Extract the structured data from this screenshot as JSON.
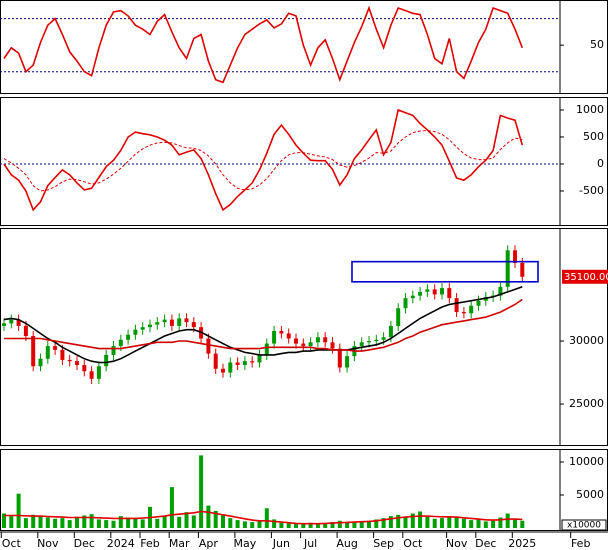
{
  "chart_data": [
    {
      "type": "line",
      "ylim": [
        14,
        84
      ],
      "yticks": [
        50
      ],
      "ref_lines": [
        30,
        70
      ],
      "series": [
        {
          "color": "#e00000",
          "values": [
            40,
            48,
            44,
            30,
            35,
            52,
            65,
            70,
            58,
            45,
            38,
            30,
            27,
            48,
            65,
            75,
            76,
            72,
            65,
            62,
            58,
            68,
            73,
            60,
            48,
            40,
            55,
            58,
            38,
            24,
            22,
            35,
            48,
            58,
            62,
            66,
            69,
            63,
            66,
            74,
            72,
            50,
            35,
            48,
            54,
            40,
            24,
            38,
            52,
            64,
            78,
            62,
            48,
            65,
            78,
            76,
            74,
            73,
            58,
            40,
            36,
            55,
            30,
            25,
            38,
            52,
            62,
            78,
            76,
            74,
            62,
            48,
            null,
            null,
            null,
            null,
            null,
            null,
            null,
            null
          ]
        }
      ]
    },
    {
      "type": "line",
      "ylim": [
        -1130,
        1240
      ],
      "yticks": [
        1000,
        500,
        0,
        -500
      ],
      "ref_lines": [
        0
      ],
      "series": [
        {
          "color": "#e00000",
          "values": [
            0,
            -200,
            -300,
            -500,
            -850,
            -700,
            -400,
            -250,
            -110,
            -200,
            -350,
            -480,
            -450,
            -250,
            -50,
            70,
            250,
            500,
            590,
            560,
            540,
            500,
            440,
            350,
            170,
            220,
            260,
            100,
            -200,
            -550,
            -850,
            -750,
            -600,
            -480,
            -350,
            -110,
            200,
            550,
            720,
            550,
            350,
            200,
            70,
            60,
            60,
            -100,
            -390,
            -200,
            100,
            260,
            450,
            630,
            170,
            400,
            1000,
            950,
            900,
            750,
            630,
            500,
            350,
            50,
            -260,
            -300,
            -200,
            -50,
            70,
            250,
            900,
            850,
            810,
            350,
            null,
            null,
            null,
            null,
            null,
            null,
            null,
            null
          ]
        },
        {
          "color": "#e00000",
          "dashed": true,
          "values": [
            100,
            20,
            -80,
            -200,
            -400,
            -500,
            -480,
            -420,
            -330,
            -280,
            -290,
            -330,
            -370,
            -350,
            -280,
            -190,
            -80,
            50,
            180,
            280,
            350,
            390,
            400,
            390,
            340,
            300,
            290,
            250,
            150,
            0,
            -200,
            -350,
            -450,
            -480,
            -460,
            -390,
            -270,
            -100,
            60,
            170,
            210,
            210,
            180,
            150,
            130,
            80,
            -20,
            -60,
            -30,
            30,
            110,
            210,
            200,
            240,
            390,
            500,
            580,
            610,
            620,
            600,
            550,
            450,
            310,
            190,
            110,
            80,
            80,
            110,
            270,
            390,
            480,
            450,
            null,
            null,
            null,
            null,
            null,
            null,
            null,
            null
          ]
        }
      ]
    },
    {
      "type": "candlestick",
      "ylim": [
        21750,
        38970
      ],
      "yticks": [
        30000,
        25000
      ],
      "up_color": "#009900",
      "down_color": "#e00000",
      "open": [
        31200,
        31400,
        31700,
        31200,
        30400,
        28000,
        28600,
        29600,
        29300,
        28500,
        28400,
        28100,
        27600,
        27000,
        28000,
        28900,
        29600,
        30100,
        30500,
        30900,
        31100,
        31300,
        31500,
        31700,
        31200,
        31800,
        31500,
        31100,
        30200,
        29000,
        27800,
        27500,
        28300,
        28100,
        28400,
        28300,
        28900,
        29800,
        30800,
        30600,
        30200,
        29800,
        29600,
        29900,
        30300,
        29900,
        29400,
        27900,
        28800,
        29600,
        29900,
        30000,
        30100,
        30300,
        31200,
        32600,
        33400,
        33600,
        33900,
        34100,
        33700,
        34200,
        33400,
        32300,
        32200,
        32800,
        33200,
        33500,
        33600,
        34300,
        37200,
        36200,
        null,
        null,
        null,
        null,
        null,
        null,
        null,
        null
      ],
      "high": [
        31800,
        32100,
        32100,
        31600,
        30800,
        29000,
        30000,
        30000,
        29700,
        28900,
        28800,
        28500,
        28000,
        28400,
        29300,
        30000,
        30500,
        30900,
        31300,
        31500,
        31700,
        31900,
        32100,
        32100,
        32200,
        32200,
        31900,
        31500,
        30600,
        29400,
        28200,
        28700,
        28700,
        28800,
        28800,
        29300,
        30200,
        31200,
        31200,
        31000,
        30600,
        30200,
        30300,
        30700,
        30700,
        30300,
        29800,
        29200,
        30000,
        30300,
        30400,
        30500,
        30700,
        31600,
        33000,
        33800,
        34000,
        34300,
        34500,
        34500,
        34600,
        34600,
        33800,
        32700,
        33200,
        33600,
        33900,
        34000,
        34700,
        37600,
        37600,
        36600,
        null,
        null,
        null,
        null,
        null,
        null,
        null,
        null
      ],
      "low": [
        30800,
        31000,
        30800,
        30000,
        27600,
        27600,
        28200,
        28900,
        28100,
        28000,
        27700,
        27200,
        26600,
        26600,
        27600,
        28500,
        29200,
        29700,
        30100,
        30500,
        30700,
        30900,
        31100,
        30800,
        30800,
        31100,
        30700,
        29800,
        28600,
        27400,
        27100,
        27100,
        27700,
        27700,
        27900,
        27900,
        28500,
        29400,
        30200,
        29800,
        29400,
        29200,
        29200,
        29500,
        29500,
        29000,
        27500,
        27500,
        28400,
        29200,
        29500,
        29600,
        29700,
        29900,
        30800,
        32200,
        33000,
        33200,
        33500,
        33300,
        33300,
        33000,
        31900,
        31800,
        31800,
        32400,
        32800,
        33100,
        33200,
        33900,
        35800,
        34700,
        null,
        null,
        null,
        null,
        null,
        null,
        null,
        null
      ],
      "close": [
        31400,
        31700,
        31200,
        30400,
        28000,
        28600,
        29600,
        29300,
        28500,
        28400,
        28100,
        27600,
        27000,
        28000,
        28900,
        29600,
        30100,
        30500,
        30900,
        31100,
        31300,
        31500,
        31700,
        31200,
        31800,
        31500,
        31100,
        30200,
        29000,
        27800,
        27500,
        28300,
        28100,
        28400,
        28300,
        28900,
        29800,
        30800,
        30600,
        30200,
        29800,
        29600,
        29900,
        30300,
        29900,
        29400,
        27900,
        28800,
        29600,
        29900,
        30000,
        30100,
        30300,
        31200,
        32600,
        33400,
        33600,
        33900,
        34100,
        33700,
        34200,
        33400,
        32300,
        32200,
        32800,
        33200,
        33500,
        33600,
        34300,
        37200,
        36200,
        35100,
        null,
        null,
        null,
        null,
        null,
        null,
        null,
        null
      ],
      "series": [
        {
          "color": "#000000",
          "values": [
            31700,
            31800,
            31700,
            31400,
            31000,
            30600,
            30200,
            29900,
            29500,
            29200,
            28900,
            28600,
            28400,
            28300,
            28300,
            28400,
            28600,
            28900,
            29200,
            29500,
            29800,
            30100,
            30400,
            30600,
            30800,
            30900,
            30900,
            30700,
            30400,
            30100,
            29800,
            29500,
            29300,
            29100,
            29000,
            28900,
            28900,
            28900,
            29000,
            29100,
            29100,
            29200,
            29200,
            29300,
            29300,
            29300,
            29300,
            29300,
            29400,
            29500,
            29600,
            29700,
            29900,
            30200,
            30600,
            31000,
            31400,
            31800,
            32100,
            32400,
            32700,
            32900,
            33000,
            33100,
            33200,
            33300,
            33400,
            33500,
            33700,
            33900,
            34100,
            34300,
            null,
            null,
            null,
            null,
            null,
            null,
            null,
            null
          ]
        },
        {
          "color": "#d00000",
          "values": [
            30200,
            30200,
            30200,
            30200,
            30200,
            30200,
            30100,
            30000,
            29900,
            29800,
            29700,
            29600,
            29500,
            29400,
            29400,
            29400,
            29400,
            29500,
            29600,
            29700,
            29800,
            29900,
            29900,
            29900,
            30000,
            30000,
            29900,
            29800,
            29700,
            29600,
            29500,
            29400,
            29400,
            29400,
            29400,
            29400,
            29500,
            29500,
            29500,
            29500,
            29500,
            29500,
            29500,
            29400,
            29400,
            29300,
            29300,
            29300,
            29200,
            29200,
            29300,
            29400,
            29500,
            29700,
            29900,
            30200,
            30400,
            30700,
            30900,
            31100,
            31300,
            31400,
            31500,
            31600,
            31700,
            31800,
            31900,
            32100,
            32300,
            32600,
            32900,
            33300,
            null,
            null,
            null,
            null,
            null,
            null,
            null,
            null
          ]
        }
      ],
      "box": {
        "low": 34700,
        "high": 36300,
        "color": "#0000cc"
      },
      "last_price": {
        "value": 35100,
        "label": "35100.00"
      }
    },
    {
      "type": "bar",
      "ylim": [
        -300,
        11970
      ],
      "yticks": [
        10000,
        5000
      ],
      "unit_label": "x10000",
      "color": "#00a000",
      "categories": [
        null,
        "Oct",
        null,
        null,
        null,
        null,
        "Nov",
        null,
        null,
        null,
        null,
        "Dec",
        null,
        null,
        null,
        null,
        "2024",
        null,
        null,
        null,
        "Feb",
        null,
        null,
        null,
        "Mar",
        null,
        null,
        null,
        "Apr",
        null,
        null,
        null,
        null,
        "May",
        null,
        null,
        null,
        null,
        "Jun",
        null,
        null,
        null,
        "Jul",
        null,
        null,
        null,
        null,
        "Aug",
        null,
        null,
        null,
        null,
        "Sep",
        null,
        null,
        null,
        "Oct",
        null,
        null,
        null,
        null,
        null,
        "Nov",
        null,
        null,
        null,
        "Dec",
        null,
        null,
        null,
        null,
        "2025",
        null,
        null,
        null,
        null,
        null,
        null,
        null,
        "Feb"
      ],
      "values": [
        2200,
        1800,
        5200,
        1500,
        2000,
        1800,
        1600,
        1400,
        1500,
        1200,
        1700,
        1900,
        2100,
        1300,
        1200,
        1100,
        1800,
        1600,
        1400,
        1300,
        3200,
        1400,
        1800,
        6200,
        1700,
        2400,
        1900,
        11000,
        3400,
        2600,
        2100,
        1500,
        1200,
        1000,
        900,
        1000,
        3000,
        1300,
        800,
        700,
        600,
        700,
        800,
        600,
        700,
        900,
        1100,
        800,
        900,
        1000,
        1100,
        1300,
        1500,
        1800,
        2000,
        1600,
        2200,
        2500,
        1700,
        1400,
        1500,
        1800,
        1700,
        1400,
        1200,
        1300,
        1000,
        1100,
        1600,
        2200,
        1300,
        1100,
        null,
        null,
        null,
        null,
        null,
        null,
        null,
        null
      ],
      "series": [
        {
          "color": "#e00000",
          "values": [
            1900,
            1900,
            1900,
            1850,
            1800,
            1800,
            1750,
            1700,
            1650,
            1600,
            1600,
            1600,
            1600,
            1550,
            1500,
            1450,
            1450,
            1450,
            1450,
            1500,
            1600,
            1700,
            1800,
            2000,
            2100,
            2200,
            2300,
            2500,
            2400,
            2200,
            2000,
            1800,
            1600,
            1400,
            1200,
            1100,
            1100,
            1000,
            900,
            800,
            700,
            650,
            650,
            650,
            700,
            750,
            800,
            850,
            900,
            950,
            1000,
            1100,
            1250,
            1400,
            1550,
            1650,
            1750,
            1800,
            1800,
            1750,
            1700,
            1700,
            1650,
            1550,
            1450,
            1350,
            1250,
            1200,
            1250,
            1350,
            1350,
            1300,
            null,
            null,
            null,
            null,
            null,
            null,
            null,
            null
          ]
        }
      ]
    }
  ]
}
